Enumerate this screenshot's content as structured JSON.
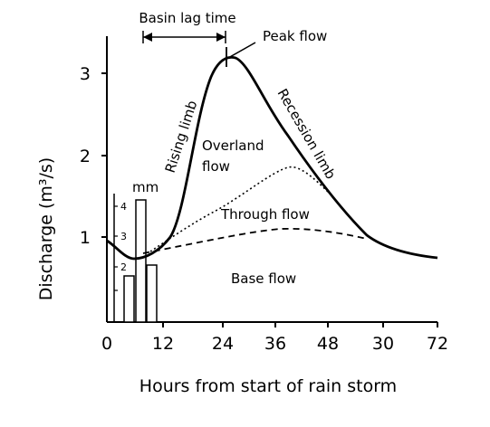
{
  "labels": {
    "basin_lag": "Basin lag time",
    "peak": "Peak flow",
    "rising": "Rising limb",
    "recession": "Recession limb",
    "overland": "Overland",
    "overland2": "flow",
    "through": "Through flow",
    "base": "Base flow",
    "mm_unit": "mm"
  },
  "axes": {
    "y_title": "Discharge (m³/s)",
    "x_title": "Hours from start of rain storm",
    "x_ticks": [
      "0",
      "12",
      "24",
      "36",
      "48",
      "30",
      "72"
    ],
    "y_ticks": [
      "1",
      "2",
      "3"
    ],
    "mm_ticks": [
      "2",
      "3",
      "4"
    ]
  },
  "rainfall_bars_mm": [
    1.7,
    3.8,
    1.8
  ],
  "colors": {
    "line": "#000000",
    "background": "#ffffff"
  }
}
